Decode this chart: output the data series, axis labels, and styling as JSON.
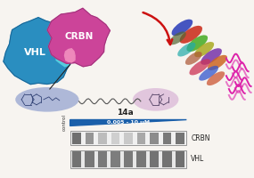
{
  "bg_color": "#f7f4f0",
  "vhl_color": "#2a8ec0",
  "vhl_label": "VHL",
  "vhl_label_color": "white",
  "crbn_color": "#cc4499",
  "crbn_label": "CRBN",
  "crbn_label_color": "white",
  "linker_label": "14a",
  "arrow_color": "#cc1111",
  "vhl_ligand_color": "#8899cc",
  "crbn_ligand_color": "#cc99cc",
  "triangle_color": "#1a5faa",
  "triangle_label": "0.005 - 10 μM",
  "control_label": "control",
  "crbn_band_label": "CRBN",
  "vhl_band_label": "VHL",
  "magenta_squiggle_color": "#dd22aa",
  "helix_colors": [
    "#3355cc",
    "#cc3322",
    "#55aa33",
    "#aaaa11",
    "#8833bb",
    "#cc6622",
    "#22aaaa",
    "#aa5533"
  ]
}
